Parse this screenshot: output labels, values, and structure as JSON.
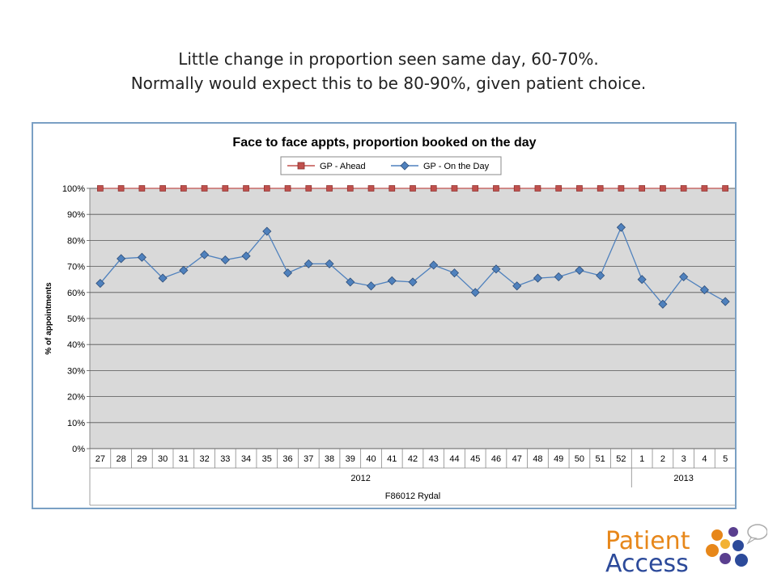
{
  "slide": {
    "title_line1": "Little change in proportion seen same day, 60-70%.",
    "title_line2": "Normally would expect this to be 80-90%, given patient choice."
  },
  "chart_data": {
    "type": "line",
    "title": "Face to face appts, proportion booked on the day",
    "ylabel": "% of appointments",
    "xlabel": "",
    "ylim": [
      0,
      100
    ],
    "yticks": [
      "0%",
      "10%",
      "20%",
      "30%",
      "40%",
      "50%",
      "60%",
      "70%",
      "80%",
      "90%",
      "100%"
    ],
    "categories": [
      "27",
      "28",
      "29",
      "30",
      "31",
      "32",
      "33",
      "34",
      "35",
      "36",
      "37",
      "38",
      "39",
      "40",
      "41",
      "42",
      "43",
      "44",
      "45",
      "46",
      "47",
      "48",
      "49",
      "50",
      "51",
      "52",
      "1",
      "2",
      "3",
      "4",
      "5"
    ],
    "year_groups": [
      {
        "label": "2012",
        "count": 26
      },
      {
        "label": "2013",
        "count": 5
      }
    ],
    "practice_label": "F86012 Rydal",
    "legend_position": "top",
    "grid": true,
    "series": [
      {
        "name": "GP - Ahead",
        "color": "#c0504d",
        "marker": "square",
        "values": [
          100,
          100,
          100,
          100,
          100,
          100,
          100,
          100,
          100,
          100,
          100,
          100,
          100,
          100,
          100,
          100,
          100,
          100,
          100,
          100,
          100,
          100,
          100,
          100,
          100,
          100,
          100,
          100,
          100,
          100,
          100
        ]
      },
      {
        "name": "GP - On the Day",
        "color": "#4f81bd",
        "marker": "diamond",
        "values": [
          63.5,
          73,
          73.5,
          65.5,
          68.5,
          74.5,
          72.5,
          74,
          83.5,
          67.5,
          71,
          71,
          64,
          62.5,
          64.5,
          64,
          70.5,
          67.5,
          60,
          69,
          62.5,
          65.5,
          66,
          68.5,
          66.5,
          85,
          65,
          55.5,
          66,
          61,
          56.5
        ]
      }
    ]
  },
  "logo": {
    "line1": "Patient",
    "line2": "Access",
    "brand_orange": "#e7871a",
    "brand_blue": "#2c4a9a",
    "brand_purple": "#5a3f8f"
  }
}
